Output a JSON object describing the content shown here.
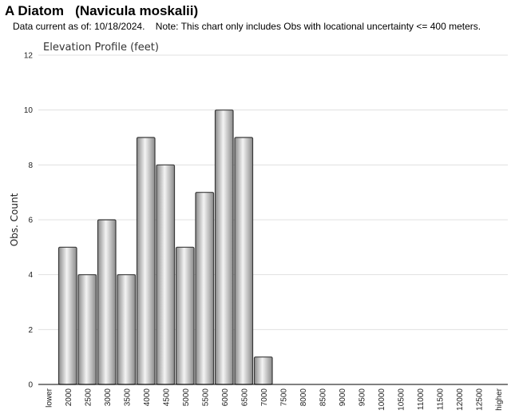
{
  "header": {
    "title": "A Diatom   (Navicula moskalii)",
    "subtitle": "Data current as of: 10/18/2024.    Note: This chart only includes Obs with locational uncertainty <= 400 meters."
  },
  "chart_data": {
    "type": "bar",
    "title": "Elevation Profile (feet)",
    "xlabel": "",
    "ylabel": "Obs. Count",
    "ylim": [
      0,
      12
    ],
    "yticks": [
      0,
      2,
      4,
      6,
      8,
      10,
      12
    ],
    "grid": true,
    "categories": [
      "lower",
      "2000",
      "2500",
      "3000",
      "3500",
      "4000",
      "4500",
      "5000",
      "5500",
      "6000",
      "6500",
      "7000",
      "7500",
      "8000",
      "8500",
      "9000",
      "9500",
      "10000",
      "10500",
      "11000",
      "11500",
      "12000",
      "12500",
      "higher"
    ],
    "values": [
      0,
      5,
      4,
      6,
      4,
      9,
      8,
      5,
      7,
      10,
      9,
      1,
      0,
      0,
      0,
      0,
      0,
      0,
      0,
      0,
      0,
      0,
      0,
      0
    ],
    "colors": {
      "bar_light": "#f4f4f4",
      "bar_dark": "#8a8a8a",
      "bar_stroke": "#3a3a3a",
      "grid": "#e0e0e0",
      "axis": "#000000"
    }
  }
}
